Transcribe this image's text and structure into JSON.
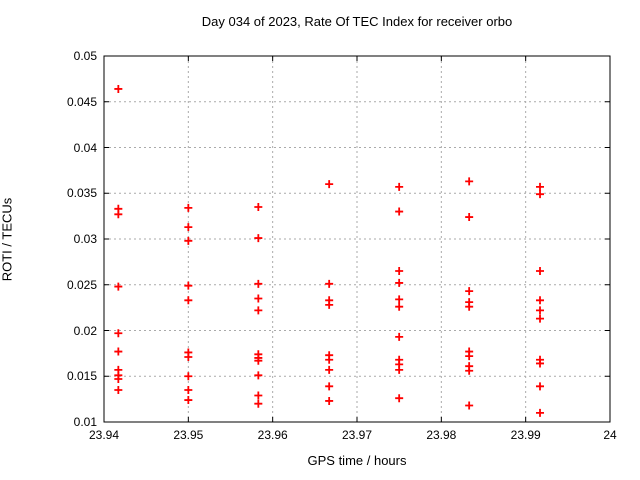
{
  "chart_data": {
    "type": "scatter",
    "title": "Day 034 of 2023, Rate Of TEC Index for receiver orbo",
    "xlabel": "GPS time / hours",
    "ylabel": "ROTI / TECUs",
    "xlim": [
      23.94,
      24
    ],
    "ylim": [
      0.01,
      0.05
    ],
    "xticks": [
      23.94,
      23.95,
      23.96,
      23.97,
      23.98,
      23.99,
      24
    ],
    "xtick_labels": [
      "23.94",
      "23.95",
      "23.96",
      "23.97",
      "23.98",
      "23.99",
      "24"
    ],
    "yticks": [
      0.01,
      0.015,
      0.02,
      0.025,
      0.03,
      0.035,
      0.04,
      0.045,
      0.05
    ],
    "ytick_labels": [
      "0.01",
      "0.015",
      "0.02",
      "0.025",
      "0.03",
      "0.035",
      "0.04",
      "0.045",
      "0.05"
    ],
    "grid": true,
    "legend": "none",
    "marker": "plus",
    "marker_color": "#ff0000",
    "grid_color": "#aaaaaa",
    "axis_color": "#000000",
    "series": [
      {
        "name": "ROTI",
        "points": [
          [
            23.9417,
            0.0464
          ],
          [
            23.9417,
            0.0333
          ],
          [
            23.9417,
            0.0327
          ],
          [
            23.9417,
            0.0248
          ],
          [
            23.9417,
            0.0197
          ],
          [
            23.9417,
            0.0177
          ],
          [
            23.9417,
            0.0157
          ],
          [
            23.9417,
            0.0151
          ],
          [
            23.9417,
            0.0147
          ],
          [
            23.9417,
            0.0135
          ],
          [
            23.95,
            0.0334
          ],
          [
            23.95,
            0.0313
          ],
          [
            23.95,
            0.0298
          ],
          [
            23.95,
            0.0249
          ],
          [
            23.95,
            0.0233
          ],
          [
            23.95,
            0.0176
          ],
          [
            23.95,
            0.0171
          ],
          [
            23.95,
            0.015
          ],
          [
            23.95,
            0.0135
          ],
          [
            23.95,
            0.0124
          ],
          [
            23.9583,
            0.0335
          ],
          [
            23.9583,
            0.0301
          ],
          [
            23.9583,
            0.0251
          ],
          [
            23.9583,
            0.0235
          ],
          [
            23.9583,
            0.0222
          ],
          [
            23.9583,
            0.0174
          ],
          [
            23.9583,
            0.017
          ],
          [
            23.9583,
            0.0167
          ],
          [
            23.9583,
            0.0151
          ],
          [
            23.9583,
            0.0129
          ],
          [
            23.9583,
            0.012
          ],
          [
            23.9667,
            0.036
          ],
          [
            23.9667,
            0.0251
          ],
          [
            23.9667,
            0.0233
          ],
          [
            23.9667,
            0.0228
          ],
          [
            23.9667,
            0.0173
          ],
          [
            23.9667,
            0.0168
          ],
          [
            23.9667,
            0.0157
          ],
          [
            23.9667,
            0.0139
          ],
          [
            23.9667,
            0.0123
          ],
          [
            23.975,
            0.0357
          ],
          [
            23.975,
            0.033
          ],
          [
            23.975,
            0.0265
          ],
          [
            23.975,
            0.0252
          ],
          [
            23.975,
            0.0234
          ],
          [
            23.975,
            0.0226
          ],
          [
            23.975,
            0.0193
          ],
          [
            23.975,
            0.0168
          ],
          [
            23.975,
            0.0163
          ],
          [
            23.975,
            0.0157
          ],
          [
            23.975,
            0.0126
          ],
          [
            23.9833,
            0.0363
          ],
          [
            23.9833,
            0.0324
          ],
          [
            23.9833,
            0.0243
          ],
          [
            23.9833,
            0.0231
          ],
          [
            23.9833,
            0.0226
          ],
          [
            23.9833,
            0.0177
          ],
          [
            23.9833,
            0.0172
          ],
          [
            23.9833,
            0.0161
          ],
          [
            23.9833,
            0.0156
          ],
          [
            23.9833,
            0.0118
          ],
          [
            23.9917,
            0.0357
          ],
          [
            23.9917,
            0.0349
          ],
          [
            23.9917,
            0.0265
          ],
          [
            23.9917,
            0.0233
          ],
          [
            23.9917,
            0.0222
          ],
          [
            23.9917,
            0.0213
          ],
          [
            23.9917,
            0.0168
          ],
          [
            23.9917,
            0.0164
          ],
          [
            23.9917,
            0.0139
          ],
          [
            23.9917,
            0.011
          ]
        ]
      }
    ]
  }
}
